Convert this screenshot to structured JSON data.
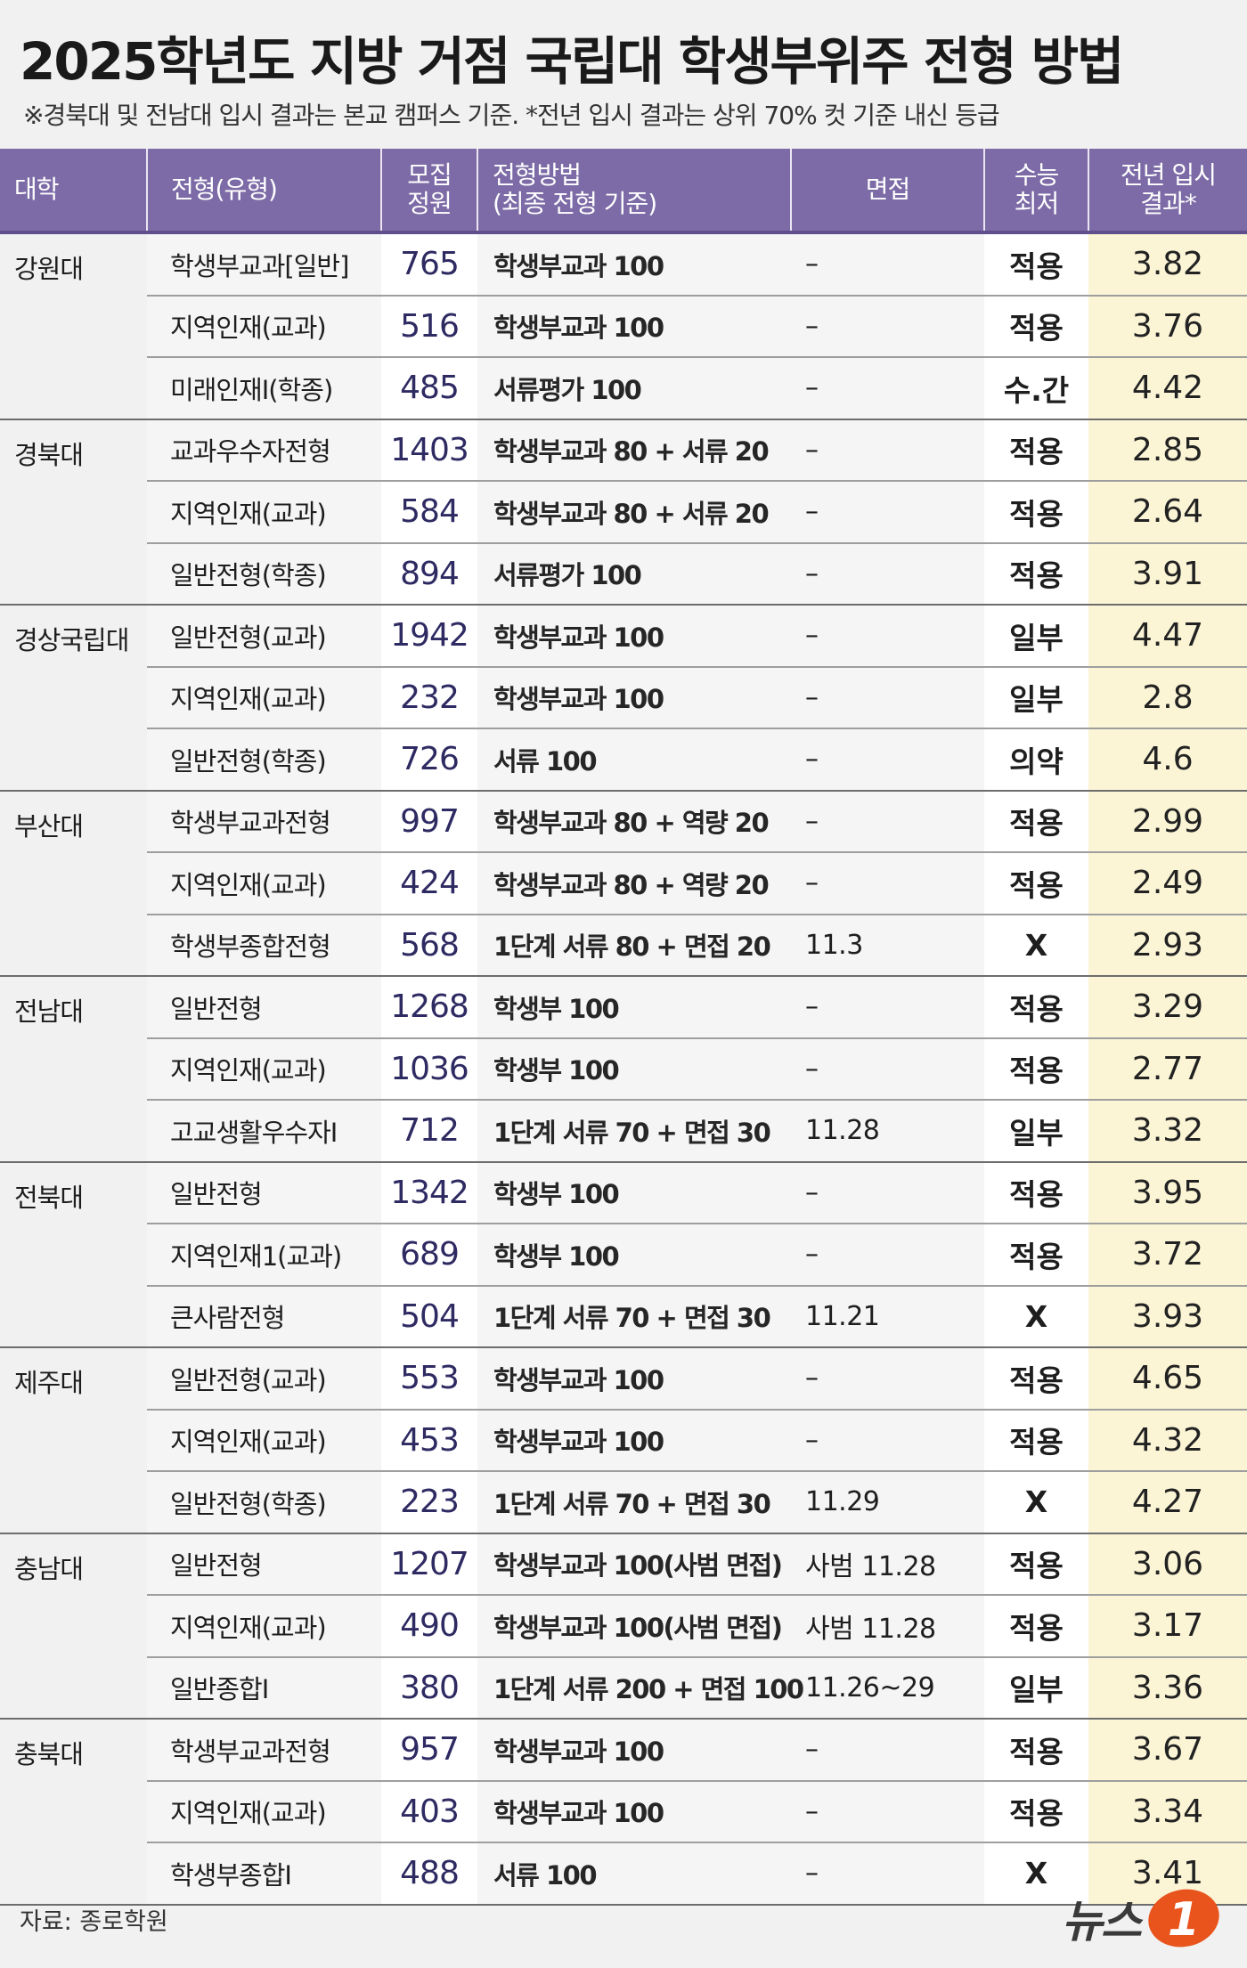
{
  "title": "2025학년도 지방 거점 국립대 학생부위주 전형 방법",
  "subtitle": "※경북대 및 전남대 입시 결과는 본교 캠퍼스 기준. *전년 입시 결과는 상위 70% 컷 기준 내신 등급",
  "columns": {
    "univ": "대학",
    "type": "전형(유형)",
    "quota_1": "모집",
    "quota_2": "정원",
    "method_1": "전형방법",
    "method_2": "(최종 전형 기준)",
    "interview": "면접",
    "csat_1": "수능",
    "csat_2": "최저",
    "result_1": "전년 입시",
    "result_2": "결과*"
  },
  "universities": [
    {
      "name": "강원대",
      "rows": [
        {
          "type": "학생부교과[일반]",
          "quota": "765",
          "method": "학생부교과 100",
          "interview": "–",
          "csat": "적용",
          "result": "3.82"
        },
        {
          "type": "지역인재(교과)",
          "quota": "516",
          "method": "학생부교과 100",
          "interview": "–",
          "csat": "적용",
          "result": "3.76"
        },
        {
          "type": "미래인재Ⅰ(학종)",
          "quota": "485",
          "method": "서류평가 100",
          "interview": "–",
          "csat": "수.간",
          "result": "4.42"
        }
      ]
    },
    {
      "name": "경북대",
      "rows": [
        {
          "type": "교과우수자전형",
          "quota": "1403",
          "method": "학생부교과 80 + 서류 20",
          "interview": "–",
          "csat": "적용",
          "result": "2.85"
        },
        {
          "type": "지역인재(교과)",
          "quota": "584",
          "method": "학생부교과 80 + 서류 20",
          "interview": "–",
          "csat": "적용",
          "result": "2.64"
        },
        {
          "type": "일반전형(학종)",
          "quota": "894",
          "method": "서류평가 100",
          "interview": "–",
          "csat": "적용",
          "result": "3.91"
        }
      ]
    },
    {
      "name": "경상국립대",
      "rows": [
        {
          "type": "일반전형(교과)",
          "quota": "1942",
          "method": "학생부교과 100",
          "interview": "–",
          "csat": "일부",
          "result": "4.47"
        },
        {
          "type": "지역인재(교과)",
          "quota": "232",
          "method": "학생부교과 100",
          "interview": "–",
          "csat": "일부",
          "result": "2.8"
        },
        {
          "type": "일반전형(학종)",
          "quota": "726",
          "method": "서류 100",
          "interview": "–",
          "csat": "의약",
          "result": "4.6"
        }
      ]
    },
    {
      "name": "부산대",
      "rows": [
        {
          "type": "학생부교과전형",
          "quota": "997",
          "method": "학생부교과 80 + 역량 20",
          "interview": "–",
          "csat": "적용",
          "result": "2.99"
        },
        {
          "type": "지역인재(교과)",
          "quota": "424",
          "method": "학생부교과 80 + 역량 20",
          "interview": "–",
          "csat": "적용",
          "result": "2.49"
        },
        {
          "type": "학생부종합전형",
          "quota": "568",
          "method": "1단계 서류 80 + 면접 20",
          "interview": "11.3",
          "csat": "X",
          "result": "2.93"
        }
      ]
    },
    {
      "name": "전남대",
      "rows": [
        {
          "type": "일반전형",
          "quota": "1268",
          "method": "학생부 100",
          "interview": "–",
          "csat": "적용",
          "result": "3.29"
        },
        {
          "type": "지역인재(교과)",
          "quota": "1036",
          "method": "학생부 100",
          "interview": "–",
          "csat": "적용",
          "result": "2.77"
        },
        {
          "type": "고교생활우수자Ⅰ",
          "quota": "712",
          "method": "1단계 서류 70 + 면접 30",
          "interview": "11.28",
          "csat": "일부",
          "result": "3.32"
        }
      ]
    },
    {
      "name": "전북대",
      "rows": [
        {
          "type": "일반전형",
          "quota": "1342",
          "method": "학생부 100",
          "interview": "–",
          "csat": "적용",
          "result": "3.95"
        },
        {
          "type": "지역인재1(교과)",
          "quota": "689",
          "method": "학생부 100",
          "interview": "–",
          "csat": "적용",
          "result": "3.72"
        },
        {
          "type": "큰사람전형",
          "quota": "504",
          "method": "1단계 서류 70 + 면접 30",
          "interview": "11.21",
          "csat": "X",
          "result": "3.93"
        }
      ]
    },
    {
      "name": "제주대",
      "rows": [
        {
          "type": "일반전형(교과)",
          "quota": "553",
          "method": "학생부교과 100",
          "interview": "–",
          "csat": "적용",
          "result": "4.65"
        },
        {
          "type": "지역인재(교과)",
          "quota": "453",
          "method": "학생부교과 100",
          "interview": "–",
          "csat": "적용",
          "result": "4.32"
        },
        {
          "type": "일반전형(학종)",
          "quota": "223",
          "method": "1단계 서류 70 + 면접 30",
          "interview": "11.29",
          "csat": "X",
          "result": "4.27"
        }
      ]
    },
    {
      "name": "충남대",
      "rows": [
        {
          "type": "일반전형",
          "quota": "1207",
          "method": "학생부교과 100(사범 면접)",
          "interview": "사범 11.28",
          "csat": "적용",
          "result": "3.06"
        },
        {
          "type": "지역인재(교과)",
          "quota": "490",
          "method": "학생부교과 100(사범 면접)",
          "interview": "사범 11.28",
          "csat": "적용",
          "result": "3.17"
        },
        {
          "type": "일반종합Ⅰ",
          "quota": "380",
          "method": "1단계 서류 200 + 면접 100",
          "interview": "11.26~29",
          "csat": "일부",
          "result": "3.36"
        }
      ]
    },
    {
      "name": "충북대",
      "rows": [
        {
          "type": "학생부교과전형",
          "quota": "957",
          "method": "학생부교과 100",
          "interview": "–",
          "csat": "적용",
          "result": "3.67"
        },
        {
          "type": "지역인재(교과)",
          "quota": "403",
          "method": "학생부교과 100",
          "interview": "–",
          "csat": "적용",
          "result": "3.34"
        },
        {
          "type": "학생부종합Ⅰ",
          "quota": "488",
          "method": "서류 100",
          "interview": "–",
          "csat": "X",
          "result": "3.41"
        }
      ]
    }
  ],
  "source": "자료: 종로학원",
  "logo": {
    "text": "뉴스",
    "mark": "1",
    "accent": "#e8541c",
    "icon": "news1-logo"
  },
  "colors": {
    "header_bg": "#7c6ba6",
    "result_bg": "#fbf5d6",
    "quota_text": "#2e2a62"
  }
}
